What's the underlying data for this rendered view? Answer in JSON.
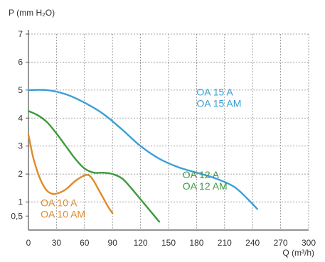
{
  "chart_data": {
    "type": "line",
    "ylabel": "P (mm H₂O)",
    "xlabel": "Q (m³/h)",
    "xlim": [
      0,
      300
    ],
    "ylim": [
      0,
      7
    ],
    "x_ticks": [
      {
        "value": 0,
        "label": "0"
      },
      {
        "value": 30,
        "label": "30"
      },
      {
        "value": 60,
        "label": "60"
      },
      {
        "value": 90,
        "label": "90"
      },
      {
        "value": 120,
        "label": "120"
      },
      {
        "value": 150,
        "label": "150"
      },
      {
        "value": 180,
        "label": "180"
      },
      {
        "value": 210,
        "label": "210"
      },
      {
        "value": 240,
        "label": "240"
      },
      {
        "value": 270,
        "label": "270"
      },
      {
        "value": 300,
        "label": "300"
      }
    ],
    "y_ticks": [
      {
        "value": 0.5,
        "label": "0,5"
      },
      {
        "value": 1,
        "label": "1"
      },
      {
        "value": 2,
        "label": "2"
      },
      {
        "value": 3,
        "label": "3"
      },
      {
        "value": 4,
        "label": "4"
      },
      {
        "value": 5,
        "label": "5"
      },
      {
        "value": 6,
        "label": "6"
      },
      {
        "value": 7,
        "label": "7"
      }
    ],
    "grid": true,
    "series": [
      {
        "name": "OA 15 A",
        "name_line2": "OA 15 AM",
        "color": "#3a9fd6",
        "label_at": [
          180,
          4.8
        ],
        "x": [
          0,
          20,
          40,
          60,
          80,
          100,
          120,
          140,
          160,
          180,
          200,
          220,
          235,
          245
        ],
        "y": [
          5.0,
          5.0,
          4.85,
          4.55,
          4.15,
          3.6,
          3.0,
          2.55,
          2.25,
          2.05,
          1.85,
          1.55,
          1.1,
          0.75
        ]
      },
      {
        "name": "OA 12 A",
        "name_line2": "OA 12 AM",
        "color": "#3d9a3d",
        "label_at": [
          165,
          1.85
        ],
        "x": [
          0,
          10,
          20,
          30,
          40,
          50,
          60,
          70,
          80,
          90,
          100,
          110,
          120,
          130,
          140
        ],
        "y": [
          4.25,
          4.1,
          3.85,
          3.45,
          3.0,
          2.55,
          2.2,
          2.05,
          2.05,
          2.0,
          1.85,
          1.5,
          1.1,
          0.7,
          0.3
        ]
      },
      {
        "name": "OA 10 A",
        "name_line2": "OA 10 AM",
        "color": "#e08a2a",
        "label_at": [
          13,
          0.85
        ],
        "x": [
          0,
          5,
          10,
          15,
          20,
          25,
          30,
          40,
          50,
          60,
          65,
          70,
          75,
          80,
          85,
          90
        ],
        "y": [
          3.4,
          2.6,
          2.05,
          1.65,
          1.4,
          1.3,
          1.3,
          1.45,
          1.75,
          1.95,
          1.95,
          1.75,
          1.45,
          1.15,
          0.85,
          0.6
        ]
      }
    ]
  }
}
